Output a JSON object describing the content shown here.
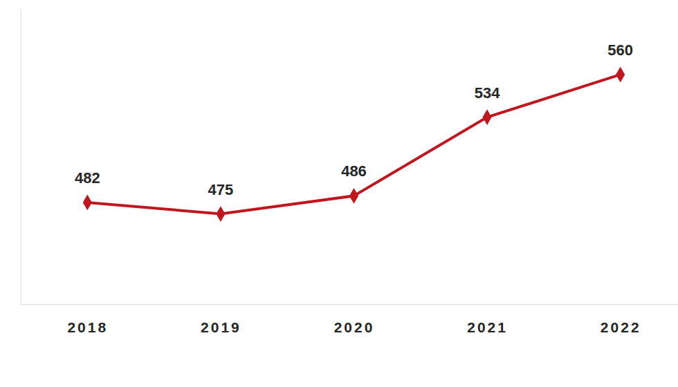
{
  "chart_data": {
    "type": "line",
    "categories": [
      "2018",
      "2019",
      "2020",
      "2021",
      "2022"
    ],
    "values": [
      482,
      475,
      486,
      534,
      560
    ],
    "color": "#c0161d",
    "marker": "diamond",
    "line_style": "solid",
    "ylim": [
      420,
      600
    ],
    "grid": false,
    "data_labels": true,
    "tick_labels": "x"
  }
}
